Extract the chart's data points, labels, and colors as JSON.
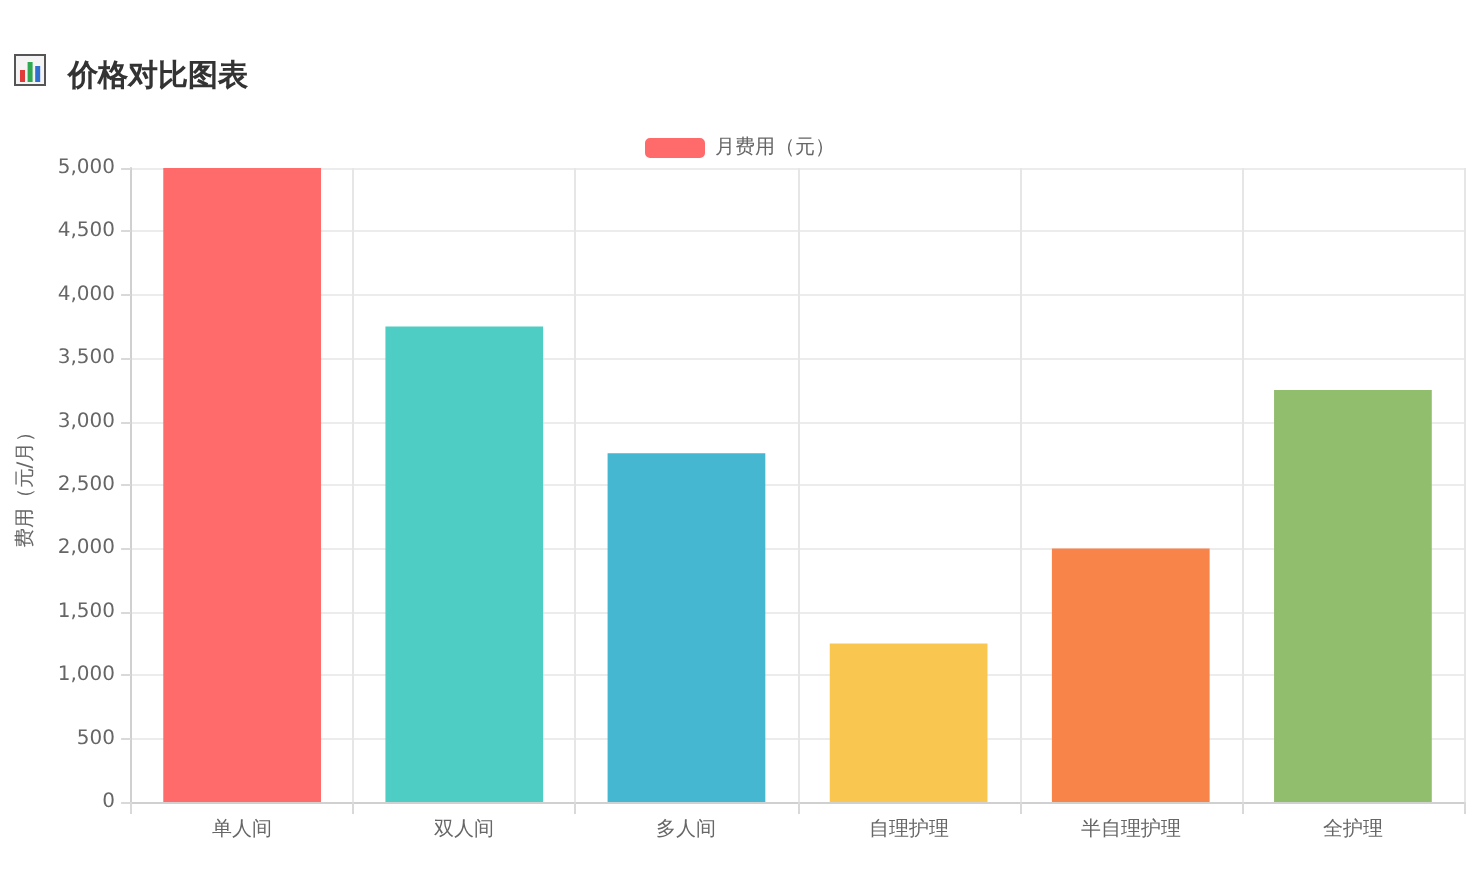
{
  "chart_data": {
    "type": "bar",
    "title": "价格对比图表",
    "ylabel": "费用（元/月）",
    "categories": [
      "单人间",
      "双人间",
      "多人间",
      "自理护理",
      "半自理护理",
      "全护理"
    ],
    "series": [
      {
        "name": "月费用（元）",
        "color": "#ff6b6b",
        "colors": [
          "#ff6b6b",
          "#4ecdc4",
          "#45b7d1",
          "#f9c74f",
          "#f9844a",
          "#90be6d"
        ],
        "values": [
          5000,
          3750,
          2750,
          1250,
          2000,
          3250
        ]
      }
    ],
    "ylim": [
      0,
      5000
    ],
    "yticks": [
      0,
      500,
      {
        "value": 1000,
        "label": "1,000"
      },
      {
        "value": 1500,
        "label": "1,500"
      },
      {
        "value": 2000,
        "label": "2,000"
      },
      {
        "value": 2500,
        "label": "2,500"
      },
      {
        "value": 3000,
        "label": "3,000"
      },
      {
        "value": 3500,
        "label": "3,500"
      },
      {
        "value": 4000,
        "label": "4,000"
      },
      {
        "value": 4500,
        "label": "4,500"
      },
      {
        "value": 5000,
        "label": "5,000"
      }
    ],
    "grid": true,
    "legend": "top"
  }
}
